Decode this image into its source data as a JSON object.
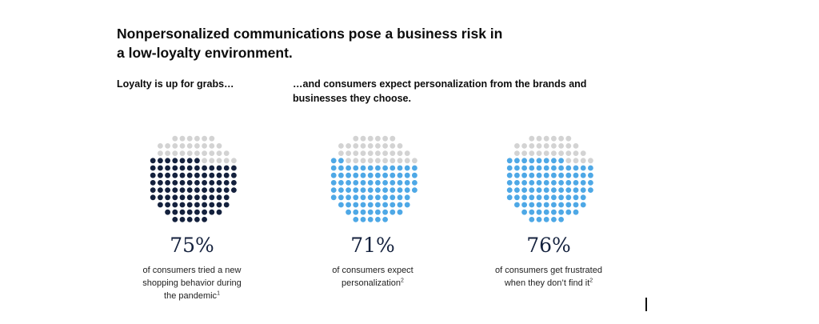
{
  "header": {
    "title_line1": "Nonpersonalized communications pose a business risk in",
    "title_line2": "a low-loyalty environment."
  },
  "subtitles": {
    "left": "Loyalty is up for grabs…",
    "right_line1": "…and consumers expect personalization from the brands and",
    "right_line2": "businesses they choose."
  },
  "colors": {
    "dark": "#14213d",
    "blue": "#4ea8e6",
    "gray": "#d3d3d3"
  },
  "chart_data": [
    {
      "type": "dot-proportion",
      "value": 75,
      "label": "75%",
      "desc": [
        "of consumers tried a new",
        "shopping behavior during",
        "the pandemic"
      ],
      "footnote": "1",
      "fill_color": "#14213d"
    },
    {
      "type": "dot-proportion",
      "value": 71,
      "label": "71%",
      "desc": [
        "of consumers expect",
        "personalization"
      ],
      "footnote": "2",
      "fill_color": "#4ea8e6"
    },
    {
      "type": "dot-proportion",
      "value": 76,
      "label": "76%",
      "desc": [
        "of consumers get frustrated",
        "when they don’t find it"
      ],
      "footnote": "2",
      "fill_color": "#4ea8e6"
    }
  ]
}
